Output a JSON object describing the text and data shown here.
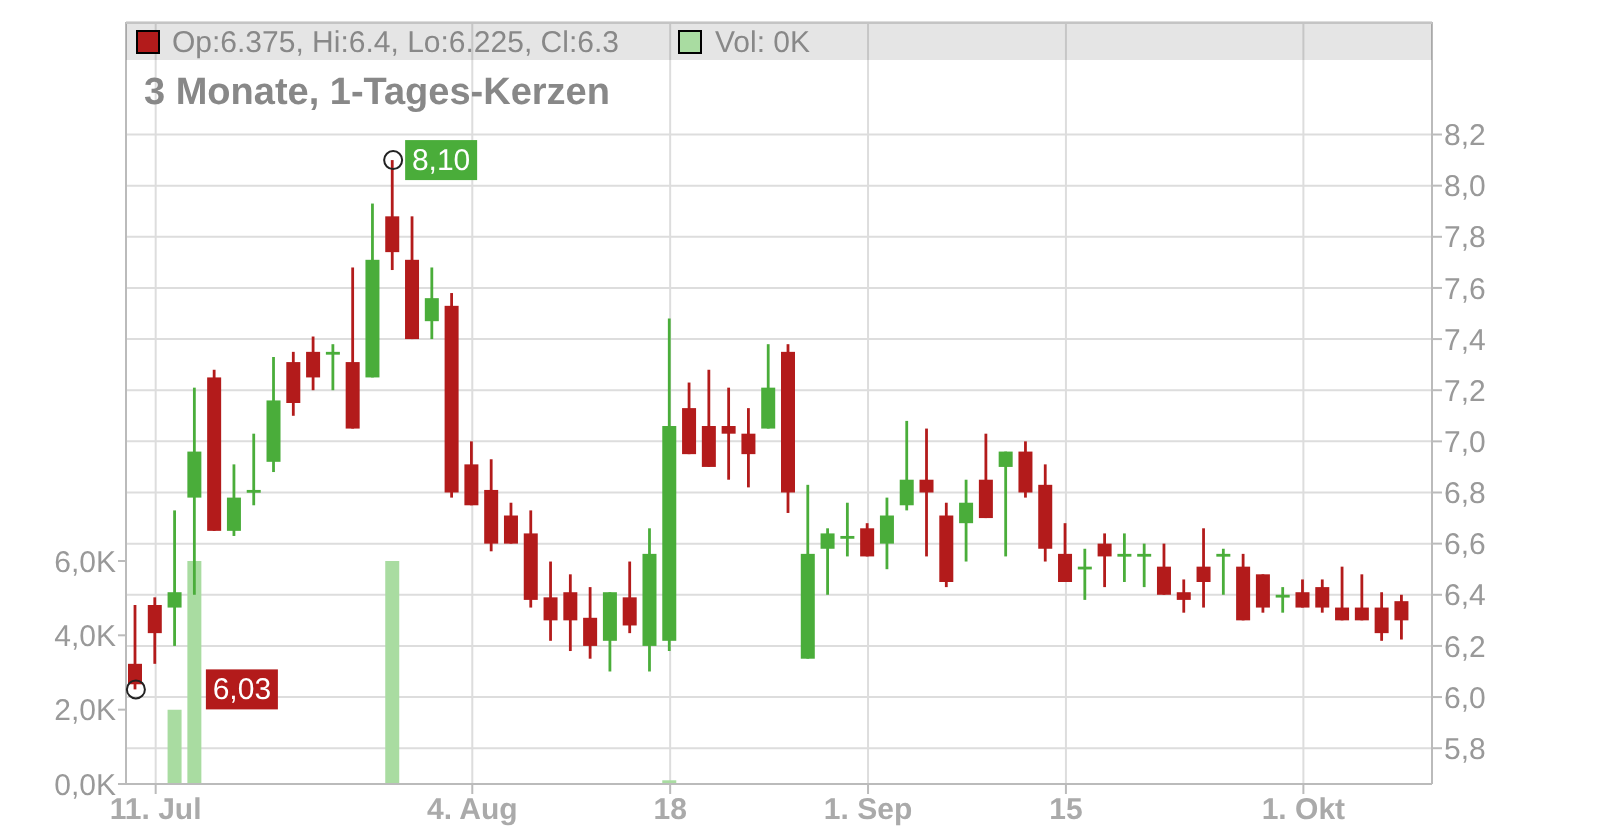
{
  "chart_data": {
    "type": "candlestick",
    "title": "3 Monate, 1-Tages-Kerzen",
    "categories": [
      null,
      "11. Jul",
      null,
      null,
      null,
      null,
      null,
      null,
      null,
      null,
      null,
      null,
      null,
      null,
      null,
      null,
      null,
      "4. Aug",
      null,
      null,
      null,
      null,
      null,
      null,
      null,
      null,
      null,
      "18",
      null,
      null,
      null,
      null,
      null,
      null,
      null,
      null,
      null,
      "1. Sep",
      null,
      null,
      null,
      null,
      null,
      null,
      null,
      null,
      null,
      "15",
      null,
      null,
      null,
      null,
      null,
      null,
      null,
      null,
      null,
      null,
      null,
      "1. Okt",
      null,
      null,
      null,
      null,
      null
    ],
    "series": [
      {
        "name": "Op:6.375, Hi:6.4, Lo:6.225, Cl:6.3",
        "color": "#b31b1b",
        "colors": [
          "#b31b1b",
          "#b31b1b",
          "#4aad3a",
          "#4aad3a",
          "#b31b1b",
          "#4aad3a",
          "#4aad3a",
          "#4aad3a",
          "#b31b1b",
          "#b31b1b",
          "#4aad3a",
          "#b31b1b",
          "#4aad3a",
          "#b31b1b",
          "#b31b1b",
          "#4aad3a",
          "#b31b1b",
          "#b31b1b",
          "#b31b1b",
          "#b31b1b",
          "#b31b1b",
          "#b31b1b",
          "#b31b1b",
          "#b31b1b",
          "#4aad3a",
          "#b31b1b",
          "#4aad3a",
          "#4aad3a",
          "#b31b1b",
          "#b31b1b",
          "#b31b1b",
          "#b31b1b",
          "#4aad3a",
          "#b31b1b",
          "#4aad3a",
          "#4aad3a",
          "#4aad3a",
          "#b31b1b",
          "#4aad3a",
          "#4aad3a",
          "#b31b1b",
          "#b31b1b",
          "#4aad3a",
          "#b31b1b",
          "#4aad3a",
          "#b31b1b",
          "#b31b1b",
          "#b31b1b",
          "#4aad3a",
          "#b31b1b",
          "#4aad3a",
          "#4aad3a",
          "#b31b1b",
          "#b31b1b",
          "#b31b1b",
          "#4aad3a",
          "#b31b1b",
          "#b31b1b",
          "#4aad3a",
          "#b31b1b",
          "#b31b1b",
          "#b31b1b",
          "#b31b1b",
          "#b31b1b",
          "#b31b1b"
        ],
        "ohlc": [
          [
            6.13,
            6.36,
            6.03,
            6.05
          ],
          [
            6.36,
            6.39,
            6.13,
            6.25
          ],
          [
            6.35,
            6.73,
            6.2,
            6.41
          ],
          [
            6.78,
            7.21,
            6.4,
            6.96
          ],
          [
            7.25,
            7.28,
            6.65,
            6.65
          ],
          [
            6.65,
            6.91,
            6.63,
            6.78
          ],
          [
            6.81,
            7.03,
            6.75,
            6.81
          ],
          [
            6.92,
            7.33,
            6.88,
            7.16
          ],
          [
            7.31,
            7.35,
            7.1,
            7.15
          ],
          [
            7.35,
            7.41,
            7.2,
            7.25
          ],
          [
            7.35,
            7.38,
            7.2,
            7.35
          ],
          [
            7.31,
            7.68,
            7.05,
            7.05
          ],
          [
            7.25,
            7.93,
            7.25,
            7.71
          ],
          [
            7.88,
            8.1,
            7.67,
            7.74
          ],
          [
            7.71,
            7.88,
            7.4,
            7.4
          ],
          [
            7.47,
            7.68,
            7.4,
            7.56
          ],
          [
            7.53,
            7.58,
            6.78,
            6.8
          ],
          [
            6.91,
            7.0,
            6.75,
            6.75
          ],
          [
            6.81,
            6.93,
            6.57,
            6.6
          ],
          [
            6.71,
            6.76,
            6.6,
            6.6
          ],
          [
            6.64,
            6.73,
            6.35,
            6.38
          ],
          [
            6.39,
            6.53,
            6.22,
            6.3
          ],
          [
            6.41,
            6.48,
            6.18,
            6.3
          ],
          [
            6.31,
            6.43,
            6.15,
            6.2
          ],
          [
            6.22,
            6.41,
            6.1,
            6.41
          ],
          [
            6.39,
            6.53,
            6.25,
            6.28
          ],
          [
            6.2,
            6.66,
            6.1,
            6.56
          ],
          [
            6.22,
            7.48,
            6.18,
            7.06
          ],
          [
            7.13,
            7.23,
            6.95,
            6.95
          ],
          [
            7.06,
            7.28,
            6.9,
            6.9
          ],
          [
            7.06,
            7.21,
            6.85,
            7.03
          ],
          [
            7.03,
            7.13,
            6.82,
            6.95
          ],
          [
            7.05,
            7.38,
            7.05,
            7.21
          ],
          [
            7.35,
            7.38,
            6.72,
            6.8
          ],
          [
            6.15,
            6.83,
            6.15,
            6.56
          ],
          [
            6.58,
            6.66,
            6.4,
            6.64
          ],
          [
            6.63,
            6.76,
            6.55,
            6.63
          ],
          [
            6.66,
            6.68,
            6.55,
            6.55
          ],
          [
            6.6,
            6.78,
            6.5,
            6.71
          ],
          [
            6.75,
            7.08,
            6.73,
            6.85
          ],
          [
            6.85,
            7.05,
            6.55,
            6.8
          ],
          [
            6.71,
            6.76,
            6.43,
            6.45
          ],
          [
            6.68,
            6.85,
            6.53,
            6.76
          ],
          [
            6.85,
            7.03,
            6.7,
            6.7
          ],
          [
            6.9,
            6.96,
            6.55,
            6.96
          ],
          [
            6.96,
            7.0,
            6.78,
            6.8
          ],
          [
            6.83,
            6.91,
            6.53,
            6.58
          ],
          [
            6.56,
            6.68,
            6.45,
            6.45
          ],
          [
            6.51,
            6.58,
            6.38,
            6.51
          ],
          [
            6.6,
            6.64,
            6.43,
            6.55
          ],
          [
            6.56,
            6.64,
            6.45,
            6.56
          ],
          [
            6.56,
            6.6,
            6.43,
            6.56
          ],
          [
            6.51,
            6.6,
            6.4,
            6.4
          ],
          [
            6.41,
            6.46,
            6.33,
            6.38
          ],
          [
            6.51,
            6.66,
            6.35,
            6.45
          ],
          [
            6.56,
            6.58,
            6.4,
            6.56
          ],
          [
            6.51,
            6.56,
            6.3,
            6.3
          ],
          [
            6.48,
            6.48,
            6.33,
            6.35
          ],
          [
            6.4,
            6.43,
            6.33,
            6.4
          ],
          [
            6.41,
            6.46,
            6.35,
            6.35
          ],
          [
            6.43,
            6.46,
            6.33,
            6.35
          ],
          [
            6.35,
            6.51,
            6.3,
            6.3
          ],
          [
            6.35,
            6.48,
            6.3,
            6.3
          ],
          [
            6.35,
            6.41,
            6.22,
            6.25
          ],
          [
            6.375,
            6.4,
            6.225,
            6.3
          ]
        ]
      },
      {
        "name": "Vol: 0K",
        "type": "bar",
        "axis": "y2",
        "color": "#a9dca1",
        "values": [
          0,
          0,
          2000,
          6000,
          0,
          0,
          0,
          0,
          0,
          0,
          0,
          0,
          0,
          6000,
          0,
          0,
          0,
          0,
          0,
          0,
          0,
          0,
          0,
          0,
          0,
          0,
          0,
          100,
          0,
          0,
          0,
          0,
          0,
          0,
          0,
          0,
          0,
          0,
          0,
          0,
          0,
          0,
          0,
          0,
          0,
          0,
          0,
          0,
          0,
          0,
          0,
          0,
          0,
          0,
          0,
          0,
          0,
          0,
          0,
          0,
          0,
          0,
          0,
          0,
          0
        ]
      }
    ],
    "ylim": [
      5.66,
      8.64
    ],
    "yticks": [
      {
        "value": 5.8,
        "label": "5,8"
      },
      {
        "value": 6.0,
        "label": "6,0"
      },
      {
        "value": 6.2,
        "label": "6,2"
      },
      {
        "value": 6.4,
        "label": "6,4"
      },
      {
        "value": 6.6,
        "label": "6,6"
      },
      {
        "value": 6.8,
        "label": "6,8"
      },
      {
        "value": 7.0,
        "label": "7,0"
      },
      {
        "value": 7.2,
        "label": "7,2"
      },
      {
        "value": 7.4,
        "label": "7,4"
      },
      {
        "value": 7.6,
        "label": "7,6"
      },
      {
        "value": 7.8,
        "label": "7,8"
      },
      {
        "value": 8.0,
        "label": "8,0"
      },
      {
        "value": 8.2,
        "label": "8,2"
      }
    ],
    "y2lim": [
      0,
      20500
    ],
    "y2ticks": [
      {
        "value": 0,
        "label": "0,0K"
      },
      {
        "value": 2000,
        "label": "2,0K"
      },
      {
        "value": 4000,
        "label": "4,0K"
      },
      {
        "value": 6000,
        "label": "6,0K"
      }
    ],
    "grid": true,
    "legend": "top",
    "annotations": [
      {
        "text": "8,10",
        "y": 8.1
      },
      {
        "text": "6,03",
        "y": 6.03
      }
    ]
  }
}
